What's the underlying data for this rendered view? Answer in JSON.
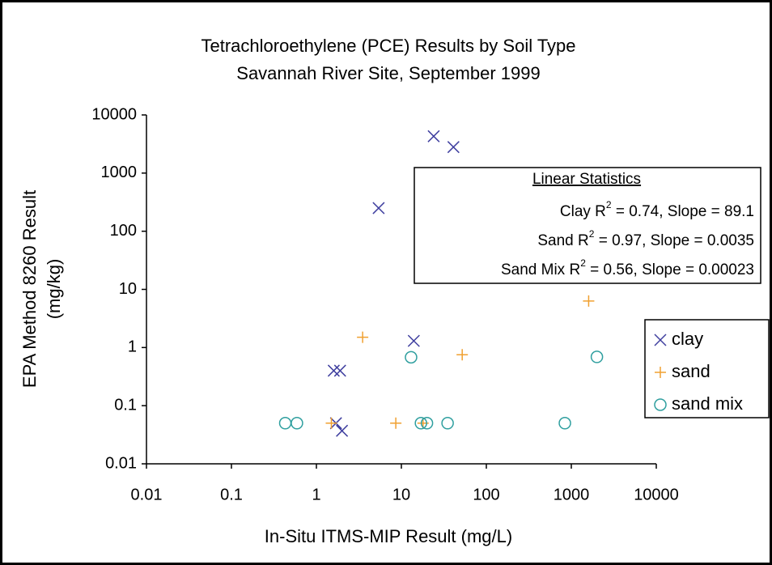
{
  "chart_data": {
    "type": "scatter",
    "title": "Tetrachloroethylene (PCE) Results by Soil Type",
    "subtitle": "Savannah River Site, September 1999",
    "xlabel": "In-Situ ITMS-MIP Result (mg/L)",
    "ylabel": [
      "EPA Method 8260 Result",
      "(mg/kg)"
    ],
    "xscale": "log",
    "yscale": "log",
    "xlim": [
      0.01,
      10000
    ],
    "ylim": [
      0.01,
      10000
    ],
    "xticks": [
      0.01,
      0.1,
      1,
      10,
      100,
      1000,
      10000
    ],
    "yticks": [
      0.01,
      0.1,
      1,
      10,
      100,
      1000,
      10000
    ],
    "grid": false,
    "legend": "right",
    "series": [
      {
        "name": "clay",
        "color": "#3f3f9f",
        "marker": "x",
        "x": [
          24,
          41,
          5.4,
          14,
          1.6,
          1.9,
          1.7,
          2
        ],
        "values": [
          4300,
          2800,
          250,
          1.3,
          0.4,
          0.4,
          0.05,
          0.037
        ]
      },
      {
        "name": "sand",
        "color": "#f0a030",
        "marker": "plus",
        "x": [
          1600,
          3.5,
          52,
          1.5,
          8.6,
          18
        ],
        "values": [
          6.3,
          1.5,
          0.75,
          0.05,
          0.05,
          0.05
        ]
      },
      {
        "name": "sand mix",
        "color": "#2f9f9f",
        "marker": "circle",
        "x": [
          0.43,
          0.59,
          13,
          17,
          20,
          35,
          840,
          2000
        ],
        "values": [
          0.05,
          0.05,
          0.68,
          0.05,
          0.05,
          0.05,
          0.05,
          0.69
        ]
      }
    ],
    "annotation": {
      "heading": "Linear Statistics",
      "lines": [
        {
          "label": "Clay R",
          "sup": "2",
          "text": " = 0.74, Slope = 89.1"
        },
        {
          "label": "Sand R",
          "sup": "2",
          "text": " = 0.97, Slope = 0.0035"
        },
        {
          "label": "Sand Mix R",
          "sup": "2",
          "text": " = 0.56, Slope = 0.00023"
        }
      ]
    }
  }
}
